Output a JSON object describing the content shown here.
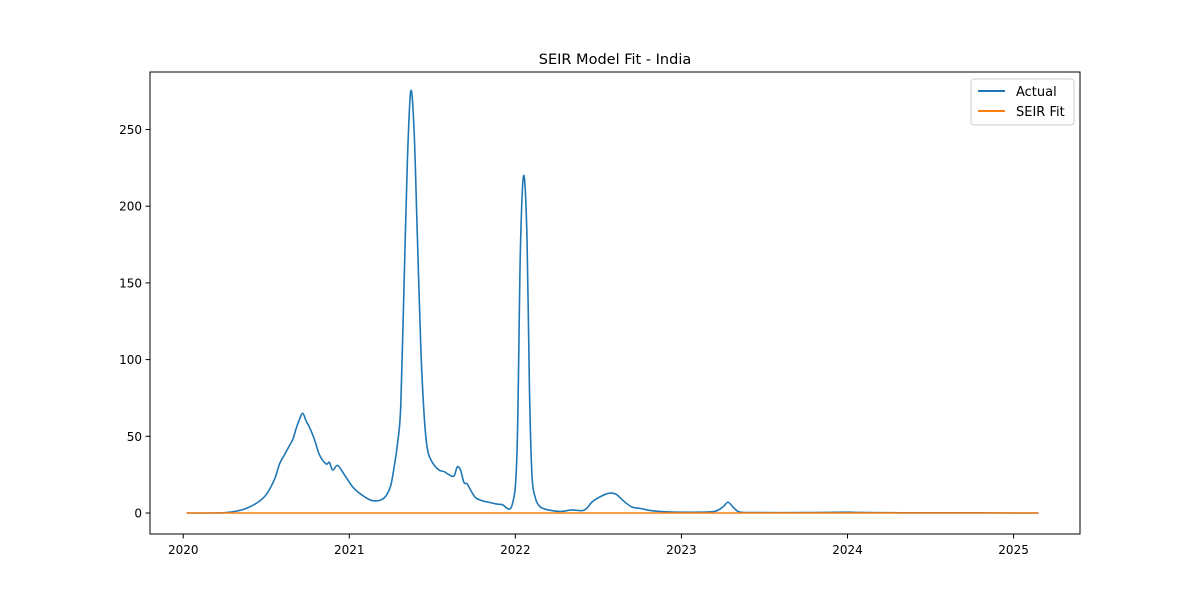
{
  "chart_data": {
    "type": "line",
    "title": "SEIR Model Fit - India",
    "xlabel": "",
    "ylabel": "",
    "xlim": [
      2019.8,
      2025.4
    ],
    "ylim": [
      -13.7,
      287.5
    ],
    "x_ticks": [
      2020,
      2021,
      2022,
      2023,
      2024,
      2025
    ],
    "x_tick_labels": [
      "2020",
      "2021",
      "2022",
      "2023",
      "2024",
      "2025"
    ],
    "y_ticks": [
      0,
      50,
      100,
      150,
      200,
      250
    ],
    "y_tick_labels": [
      "0",
      "50",
      "100",
      "150",
      "200",
      "250"
    ],
    "grid": false,
    "legend_position": "top-right",
    "series": [
      {
        "name": "Actual",
        "color": "#1f77b4",
        "x": [
          2020.02,
          2020.15,
          2020.25,
          2020.32,
          2020.38,
          2020.45,
          2020.5,
          2020.55,
          2020.58,
          2020.61,
          2020.64,
          2020.66,
          2020.68,
          2020.7,
          2020.72,
          2020.74,
          2020.76,
          2020.79,
          2020.82,
          2020.86,
          2020.88,
          2020.9,
          2020.93,
          2020.97,
          2021.02,
          2021.06,
          2021.1,
          2021.14,
          2021.19,
          2021.22,
          2021.25,
          2021.27,
          2021.29,
          2021.31,
          2021.33,
          2021.35,
          2021.37,
          2021.39,
          2021.41,
          2021.43,
          2021.45,
          2021.47,
          2021.5,
          2021.54,
          2021.57,
          2021.6,
          2021.63,
          2021.65,
          2021.67,
          2021.69,
          2021.71,
          2021.73,
          2021.76,
          2021.8,
          2021.84,
          2021.88,
          2021.92,
          2021.98,
          2022.01,
          2022.03,
          2022.05,
          2022.07,
          2022.085,
          2022.1,
          2022.12,
          2022.15,
          2022.2,
          2022.27,
          2022.34,
          2022.4,
          2022.43,
          2022.46,
          2022.5,
          2022.55,
          2022.58,
          2022.61,
          2022.65,
          2022.7,
          2022.75,
          2022.82,
          2022.9,
          2023.0,
          2023.1,
          2023.2,
          2023.25,
          2023.28,
          2023.31,
          2023.34,
          2023.37,
          2023.45,
          2023.6,
          2023.8,
          2024.0,
          2024.05,
          2024.2,
          2024.4,
          2024.6,
          2024.8,
          2025.0,
          2025.15
        ],
        "y": [
          0,
          0,
          0.2,
          1.2,
          3,
          7,
          12,
          22,
          32,
          38,
          44,
          48,
          55,
          61,
          65,
          60,
          56,
          48,
          38,
          32,
          33,
          28,
          31,
          25,
          17,
          13,
          10,
          8,
          8.5,
          11,
          18,
          30,
          45,
          70,
          150,
          230,
          275,
          250,
          180,
          110,
          65,
          42,
          33,
          28,
          27,
          25,
          24,
          30,
          28,
          20,
          19,
          15,
          10,
          8,
          7,
          6,
          5.5,
          5,
          40,
          170,
          220,
          180,
          80,
          25,
          10,
          4,
          2,
          1,
          2,
          1.5,
          3,
          7,
          10,
          12.5,
          13,
          12,
          8,
          4,
          3,
          1.5,
          0.8,
          0.5,
          0.5,
          1,
          4,
          7,
          4,
          1,
          0.4,
          0.3,
          0.2,
          0.3,
          0.5,
          0.4,
          0.2,
          0.1,
          0.1,
          0.1,
          0,
          0
        ]
      },
      {
        "name": "SEIR Fit",
        "color": "#ff7f0e",
        "x": [
          2020.02,
          2025.15
        ],
        "y": [
          0,
          0
        ]
      }
    ]
  }
}
